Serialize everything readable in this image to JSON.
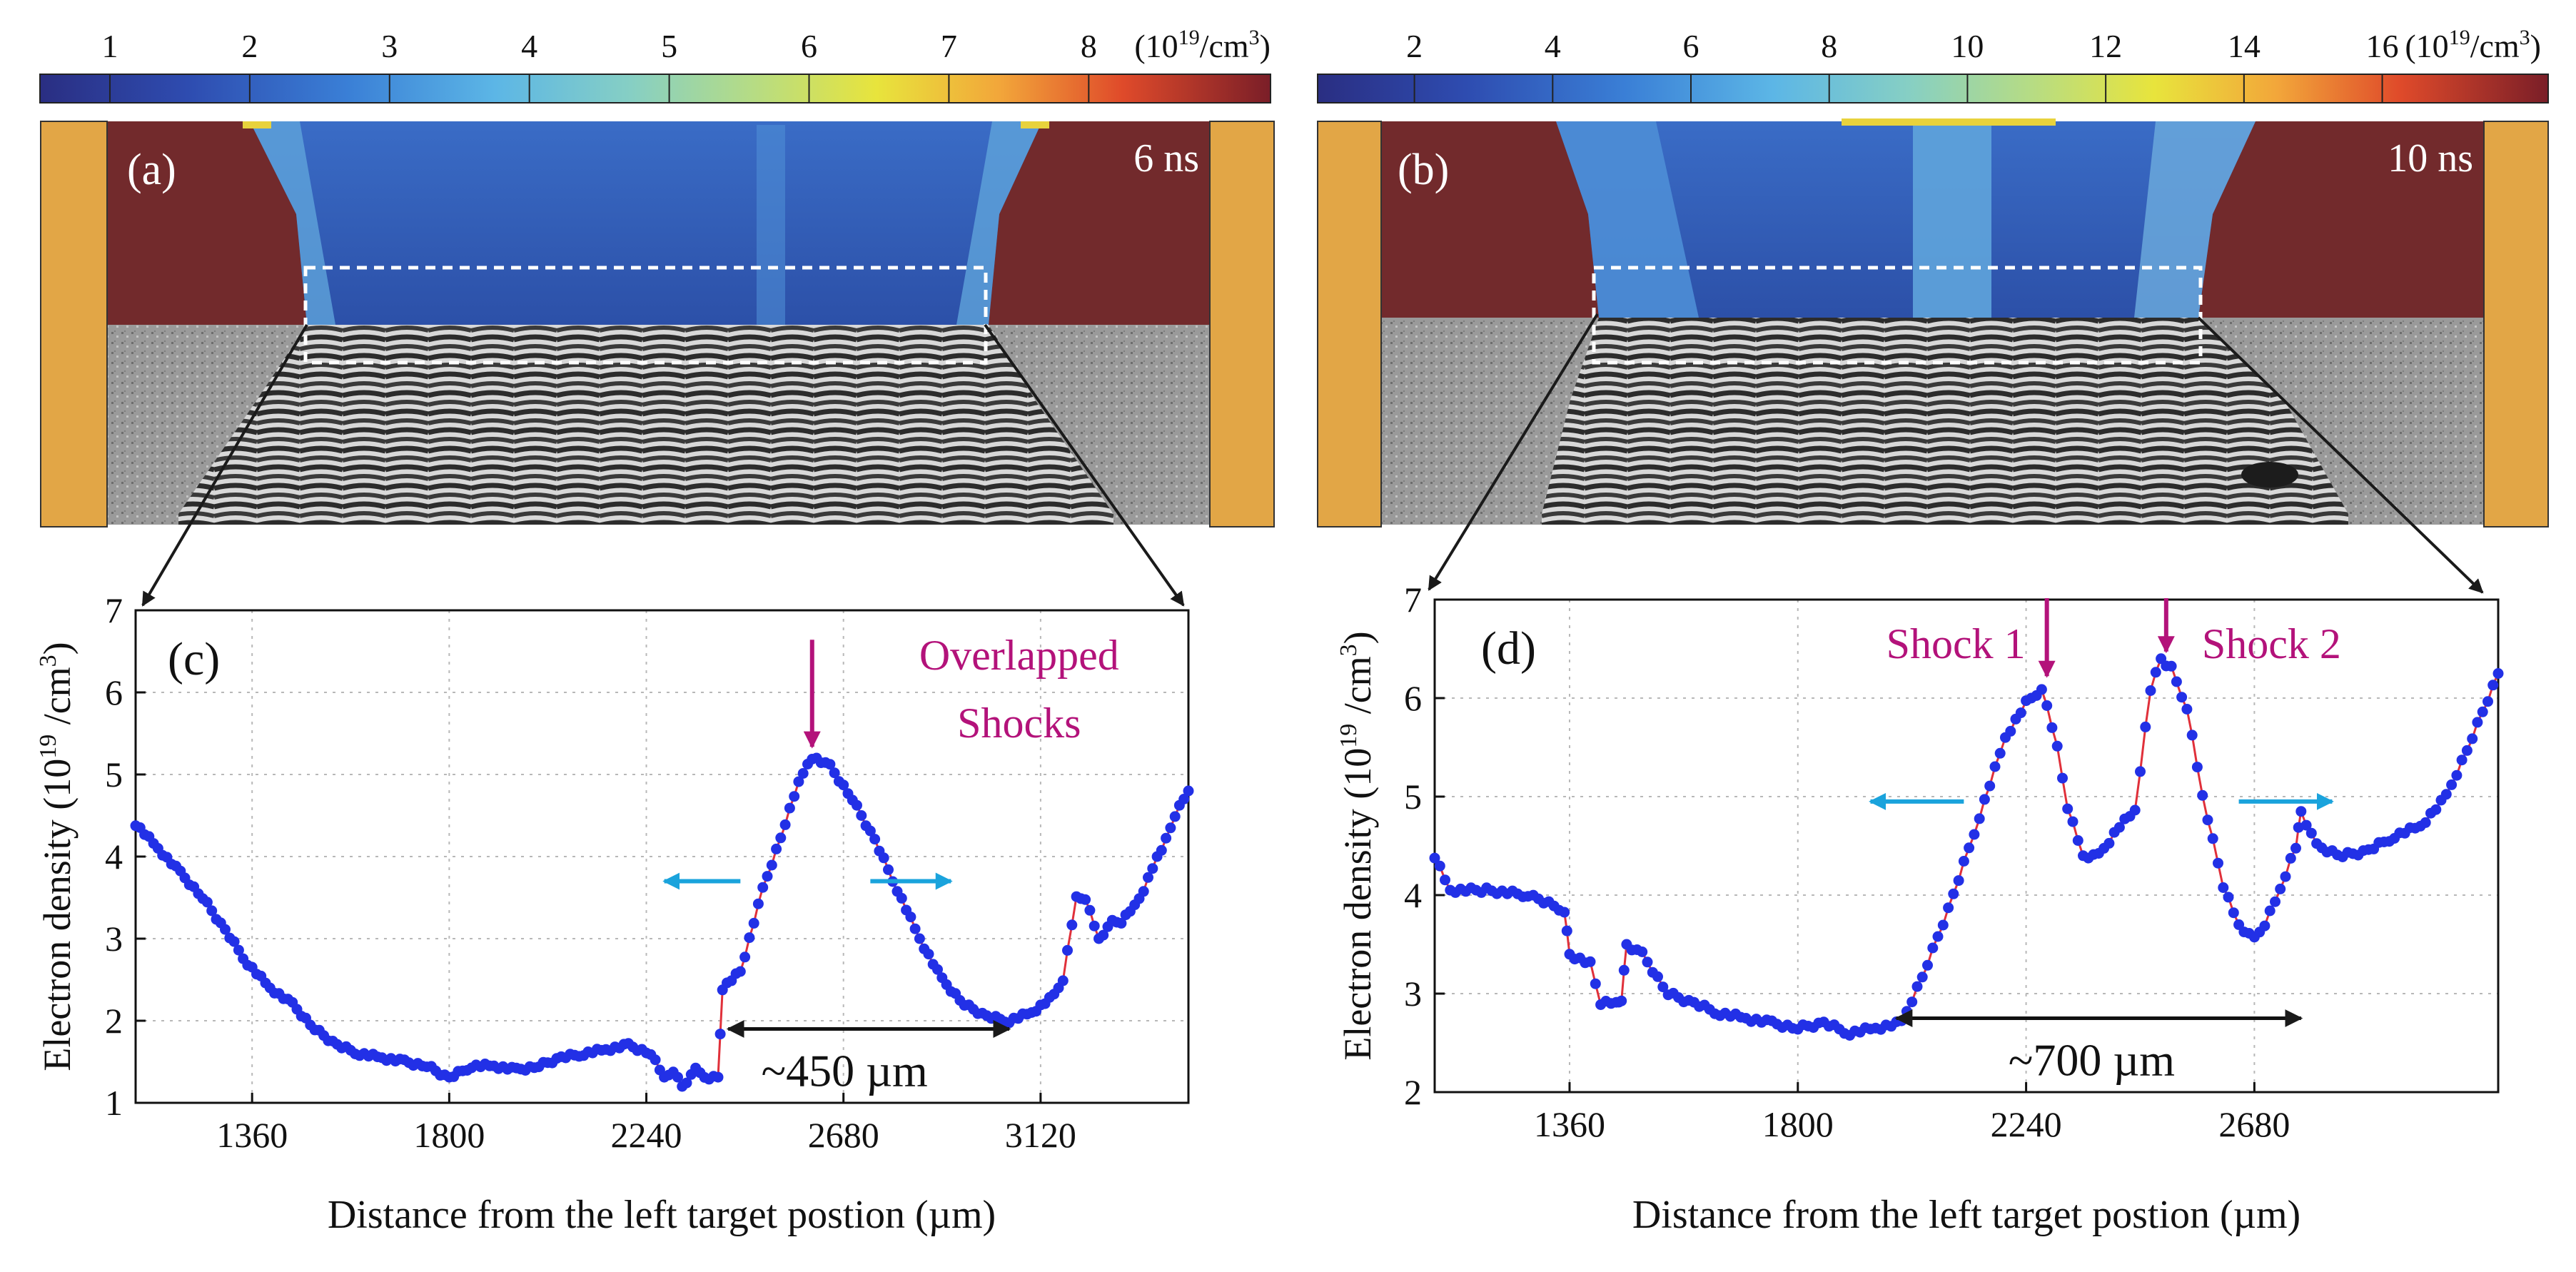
{
  "colorbar_a": {
    "ticks": [
      "1",
      "2",
      "3",
      "4",
      "5",
      "6",
      "7",
      "8"
    ],
    "unit_base": "(10",
    "unit_exp": "19",
    "unit_rest": "/cm",
    "unit_cube": "3",
    "unit_close": ")",
    "range": [
      0.5,
      9.3
    ]
  },
  "colorbar_b": {
    "ticks": [
      "2",
      "4",
      "6",
      "8",
      "10",
      "12",
      "14",
      "16"
    ],
    "unit_base": "(10",
    "unit_exp": "19",
    "unit_rest": "/cm",
    "unit_cube": "3",
    "unit_close": ")",
    "range": [
      0.6,
      18.4
    ]
  },
  "colors": {
    "plasma_high": "#722a2c",
    "plasma_low": "#2f55b0",
    "plasma_mid": "#5fa4db",
    "target": "#e2a646",
    "series_dots": "#2230e6",
    "series_line": "#e0303a",
    "annotation": "#b3127a",
    "flow_arrow": "#1aa3dc",
    "interferogram_bg": "#8c8c8c"
  },
  "panel_a": {
    "label": "(a)",
    "time": "6 ns"
  },
  "panel_b": {
    "label": "(b)",
    "time": "10 ns"
  },
  "chart_data": [
    {
      "type": "line",
      "panel": "(c)",
      "xlabel": "Distance from the left target postion (µm)",
      "ylabel_main": "Electron density (10",
      "ylabel_exp": "19",
      "ylabel_rest": " /cm",
      "ylabel_cube": "3",
      "ylabel_close": ")",
      "xlim": [
        1100,
        3450
      ],
      "ylim": [
        1,
        7
      ],
      "xticks": [
        1360,
        1800,
        2240,
        2680,
        3120
      ],
      "xtick_labels": [
        "1360",
        "1800",
        "2240",
        "2680",
        "3120"
      ],
      "yticks": [
        1,
        2,
        3,
        4,
        5,
        6,
        7
      ],
      "ytick_labels": [
        "1",
        "2",
        "3",
        "4",
        "5",
        "6",
        "7"
      ],
      "grid": true,
      "series": [
        {
          "name": "electron density",
          "x": [
            1100,
            1150,
            1200,
            1250,
            1300,
            1350,
            1400,
            1450,
            1500,
            1550,
            1600,
            1650,
            1700,
            1750,
            1800,
            1850,
            1900,
            1950,
            2000,
            2050,
            2100,
            2150,
            2200,
            2250,
            2280,
            2300,
            2320,
            2350,
            2380,
            2400,
            2410,
            2450,
            2500,
            2550,
            2580,
            2600,
            2620,
            2650,
            2700,
            2750,
            2800,
            2850,
            2900,
            2950,
            3000,
            3050,
            3100,
            3150,
            3170,
            3200,
            3220,
            3250,
            3280,
            3300,
            3330,
            3350,
            3380,
            3400,
            3420,
            3450
          ],
          "y": [
            4.4,
            4.1,
            3.8,
            3.5,
            3.1,
            2.7,
            2.4,
            2.2,
            1.9,
            1.7,
            1.6,
            1.55,
            1.5,
            1.45,
            1.3,
            1.45,
            1.45,
            1.4,
            1.45,
            1.55,
            1.6,
            1.65,
            1.7,
            1.6,
            1.3,
            1.4,
            1.2,
            1.4,
            1.3,
            1.3,
            2.4,
            2.6,
            3.6,
            4.4,
            4.9,
            5.15,
            5.2,
            5.1,
            4.7,
            4.2,
            3.6,
            3.0,
            2.5,
            2.2,
            2.05,
            2.0,
            2.1,
            2.3,
            2.5,
            3.5,
            3.5,
            3.0,
            3.2,
            3.2,
            3.4,
            3.6,
            4.0,
            4.2,
            4.5,
            4.8
          ]
        }
      ],
      "annotations": [
        {
          "text_line1": "Overlapped",
          "text_line2": "Shocks",
          "x": 2610,
          "y": 5.25
        },
        {
          "text": "~450 µm",
          "x_from": 2410,
          "x_to": 3050,
          "y": 1.9
        }
      ],
      "flow_arrows": {
        "left_from": 2450,
        "left_to": 2280,
        "right_from": 2740,
        "right_to": 2920,
        "y": 3.7
      }
    },
    {
      "type": "line",
      "panel": "(d)",
      "xlabel": "Distance from the left target postion (µm)",
      "ylabel_main": "Electron density (10",
      "ylabel_exp": "19",
      "ylabel_rest": " /cm",
      "ylabel_cube": "3",
      "ylabel_close": ")",
      "xlim": [
        1100,
        3150
      ],
      "ylim": [
        2,
        7
      ],
      "xticks": [
        1360,
        1800,
        2240,
        2680
      ],
      "xtick_labels": [
        "1360",
        "1800",
        "2240",
        "2680"
      ],
      "yticks": [
        2,
        3,
        4,
        5,
        6,
        7
      ],
      "ytick_labels": [
        "2",
        "3",
        "4",
        "5",
        "6",
        "7"
      ],
      "grid": true,
      "series": [
        {
          "name": "electron density",
          "x": [
            1100,
            1130,
            1200,
            1280,
            1300,
            1350,
            1360,
            1400,
            1420,
            1450,
            1460,
            1470,
            1500,
            1550,
            1600,
            1650,
            1700,
            1750,
            1800,
            1850,
            1900,
            1950,
            2000,
            2050,
            2100,
            2150,
            2200,
            2240,
            2270,
            2300,
            2320,
            2350,
            2380,
            2420,
            2450,
            2480,
            2500,
            2520,
            2550,
            2580,
            2620,
            2650,
            2680,
            2700,
            2730,
            2760,
            2770,
            2800,
            2850,
            2900,
            2950,
            3000,
            3050,
            3100,
            3150
          ],
          "y": [
            4.4,
            4.05,
            4.05,
            4.0,
            3.95,
            3.85,
            3.4,
            3.3,
            2.9,
            2.9,
            2.95,
            3.5,
            3.4,
            3.0,
            2.9,
            2.8,
            2.75,
            2.7,
            2.65,
            2.7,
            2.6,
            2.65,
            2.7,
            3.3,
            4.0,
            4.8,
            5.6,
            5.95,
            6.1,
            5.5,
            4.9,
            4.4,
            4.4,
            4.7,
            4.85,
            6.1,
            6.4,
            6.3,
            5.9,
            5.0,
            4.1,
            3.7,
            3.55,
            3.7,
            4.05,
            4.5,
            4.85,
            4.5,
            4.4,
            4.45,
            4.6,
            4.7,
            5.0,
            5.6,
            6.25
          ]
        }
      ],
      "annotations": [
        {
          "text": "Shock 1",
          "x": 2280,
          "y": 6.15
        },
        {
          "text": "Shock 2",
          "x": 2510,
          "y": 6.4
        },
        {
          "text": "~700 µm",
          "x_from": 1990,
          "x_to": 2770,
          "y": 2.75
        }
      ],
      "flow_arrows": {
        "left_from": 2120,
        "left_to": 1940,
        "right_from": 2650,
        "right_to": 2830,
        "y": 4.95
      }
    }
  ]
}
